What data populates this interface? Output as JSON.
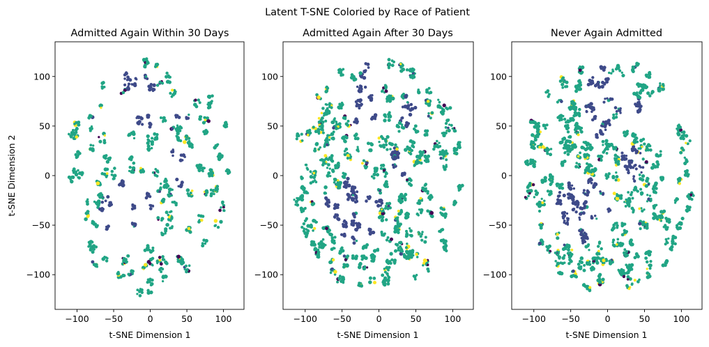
{
  "figure": {
    "suptitle": "Latent T-SNE Coloried by Race of Patient"
  },
  "palette": {
    "teal": "#21a585",
    "indigo": "#3e4a89",
    "yellow": "#fde725",
    "dark": "#440154",
    "green": "#5ec962"
  },
  "chart_data": [
    {
      "type": "scatter",
      "title": "Admitted Again Within 30 Days",
      "xlabel": "t-SNE Dimension 1",
      "ylabel": "t-SNE Dimension 2",
      "xlim": [
        -130,
        128
      ],
      "ylim": [
        -135,
        135
      ],
      "xticks": [
        -100,
        -50,
        0,
        50,
        100
      ],
      "yticks": [
        -100,
        -50,
        0,
        50,
        100
      ],
      "seed": 11,
      "density": 0.55,
      "series": [
        {
          "color": "#21a585"
        },
        {
          "color": "#3e4a89"
        },
        {
          "color": "#fde725"
        },
        {
          "color": "#440154"
        },
        {
          "color": "#5ec962"
        }
      ]
    },
    {
      "type": "scatter",
      "title": "Admitted Again After 30 Days",
      "xlabel": "t-SNE Dimension 1",
      "ylabel": "",
      "xlim": [
        -130,
        128
      ],
      "ylim": [
        -135,
        135
      ],
      "xticks": [
        -100,
        -50,
        0,
        50,
        100
      ],
      "yticks": [
        -100,
        -50,
        0,
        50,
        100
      ],
      "seed": 23,
      "density": 1.0,
      "series": [
        {
          "color": "#21a585"
        },
        {
          "color": "#3e4a89"
        },
        {
          "color": "#fde725"
        },
        {
          "color": "#440154"
        },
        {
          "color": "#5ec962"
        }
      ]
    },
    {
      "type": "scatter",
      "title": "Never Again Admitted",
      "xlabel": "t-SNE Dimension 1",
      "ylabel": "",
      "xlim": [
        -130,
        128
      ],
      "ylim": [
        -135,
        135
      ],
      "xticks": [
        -100,
        -50,
        0,
        50,
        100
      ],
      "yticks": [
        -100,
        -50,
        0,
        50,
        100
      ],
      "seed": 37,
      "density": 1.0,
      "series": [
        {
          "color": "#21a585"
        },
        {
          "color": "#3e4a89"
        },
        {
          "color": "#fde725"
        },
        {
          "color": "#440154"
        },
        {
          "color": "#5ec962"
        }
      ]
    }
  ]
}
